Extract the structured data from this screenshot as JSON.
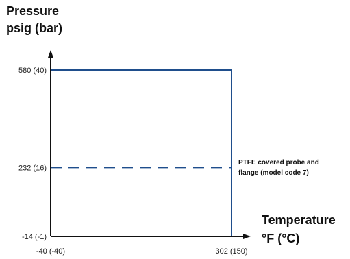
{
  "chart_data": {
    "type": "line",
    "title": "",
    "ylabel": [
      "Pressure",
      "psig (bar)"
    ],
    "xlabel": [
      "Temperature",
      "°F (°C)"
    ],
    "xlim": [
      -40,
      302
    ],
    "ylim": [
      -14,
      580
    ],
    "x_ticks": [
      {
        "value": -40,
        "label": "-40 (-40)"
      },
      {
        "value": 302,
        "label": "302 (150)"
      }
    ],
    "y_ticks": [
      {
        "value": 580,
        "label": "580 (40)"
      },
      {
        "value": 232,
        "label": "232 (16)"
      },
      {
        "value": -14,
        "label": "-14 (-1)"
      }
    ],
    "series": [
      {
        "style": "solid",
        "color": "#1f4e8c",
        "x": [
          -40,
          302,
          302
        ],
        "y": [
          580,
          580,
          -14
        ]
      },
      {
        "style": "dashed",
        "color": "#1f4e8c",
        "x": [
          -40,
          302
        ],
        "y": [
          232,
          232
        ]
      }
    ],
    "annotations": [
      {
        "text": [
          "PTFE covered probe and",
          "flange (model code 7)"
        ]
      }
    ],
    "grid": false,
    "axis_color": "#111111"
  }
}
